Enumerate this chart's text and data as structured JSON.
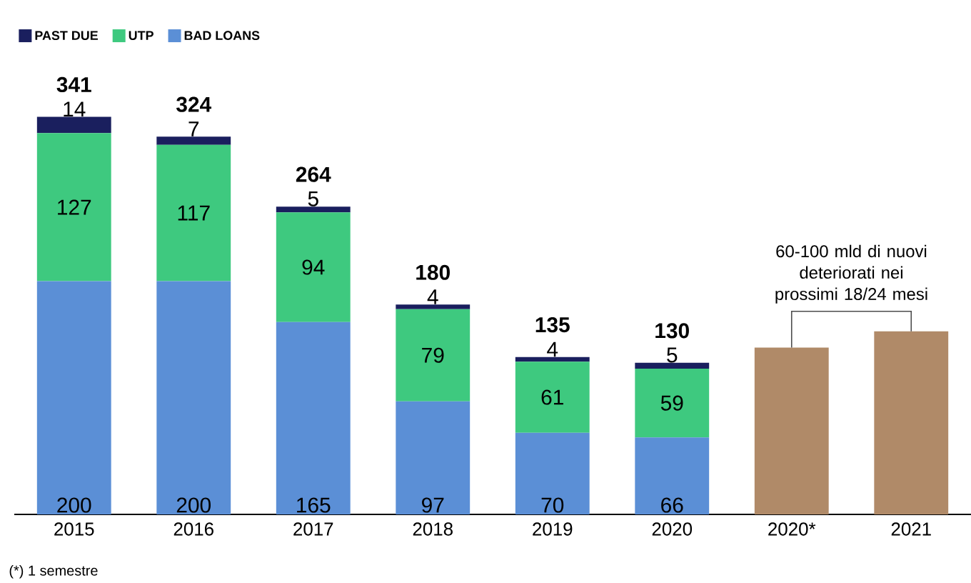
{
  "chart_data": {
    "type": "bar",
    "stacked": true,
    "categories": [
      "2015",
      "2016",
      "2017",
      "2018",
      "2019",
      "2020",
      "2020*",
      "2021"
    ],
    "series": [
      {
        "name": "BAD LOANS",
        "color": "#5b8fd6",
        "values": [
          200,
          200,
          165,
          97,
          70,
          66,
          null,
          null
        ],
        "value_labels": [
          "200",
          "200",
          "165",
          "97",
          "70",
          "66",
          null,
          null
        ]
      },
      {
        "name": "UTP",
        "color": "#3ec97f",
        "values": [
          127,
          117,
          94,
          79,
          61,
          59,
          null,
          null
        ],
        "value_labels": [
          "127",
          "117",
          "94",
          "79",
          "61",
          "59",
          null,
          null
        ]
      },
      {
        "name": "PAST DUE",
        "color": "#1a1f5e",
        "values": [
          14,
          7,
          5,
          4,
          4,
          5,
          null,
          null
        ],
        "value_labels": [
          "14",
          "7",
          "5",
          "4",
          "4",
          "5",
          null,
          null
        ]
      },
      {
        "color": "#b08a68",
        "values": [
          null,
          null,
          null,
          null,
          null,
          null,
          143,
          157
        ]
      }
    ],
    "totals": [
      "341",
      "324",
      "264",
      "180",
      "135",
      "130",
      null,
      null
    ],
    "tick_labels": "x",
    "legend": "top left",
    "annotations": [
      "60-100 mld di nuovi deteriorati nei prossimi 18/24 mesi",
      "(*) 1 semestre"
    ]
  }
}
